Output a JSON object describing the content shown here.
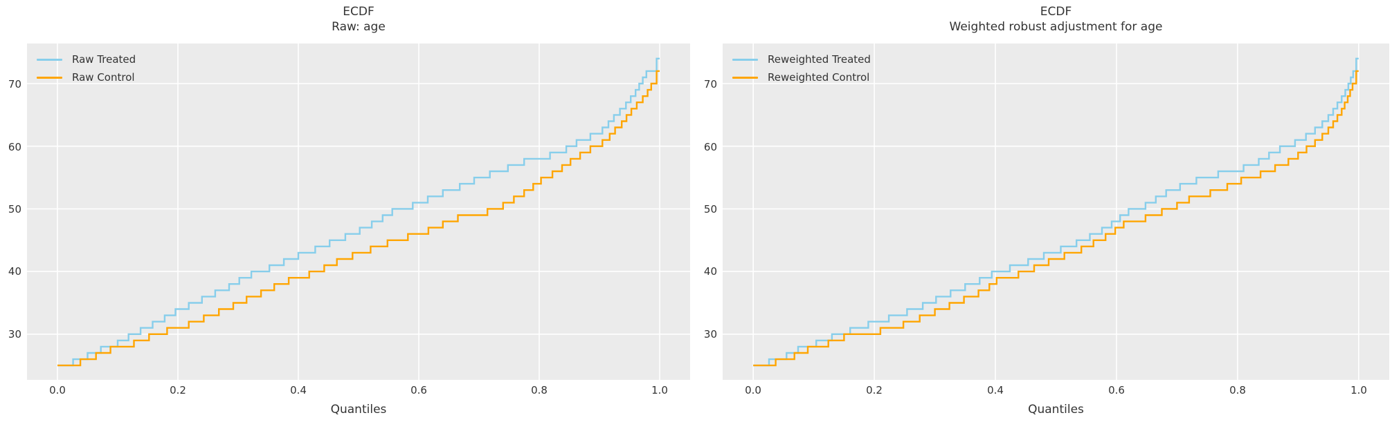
{
  "accent_colors": {
    "treated": "#87CEEB",
    "control": "#FFA500",
    "plot_background": "#ebebeb",
    "grid": "#ffffff",
    "text": "#333333"
  },
  "chart_data": [
    {
      "type": "line",
      "variant": "ecdf-step",
      "title": "ECDF\nRaw: age",
      "xlabel": "Quantiles",
      "legend_position": "upper-left",
      "grid": true,
      "x_ticks": [
        "0.0",
        "0.2",
        "0.4",
        "0.6",
        "0.8",
        "1.0"
      ],
      "x_tick_values": [
        0.0,
        0.2,
        0.4,
        0.6,
        0.8,
        1.0
      ],
      "y_ticks": [
        "30",
        "40",
        "50",
        "60",
        "70"
      ],
      "y_tick_values": [
        30,
        40,
        50,
        60,
        70
      ],
      "xlim": [
        -0.0506,
        1.0506
      ],
      "ylim": [
        22.7,
        76.4
      ],
      "series": [
        {
          "name": "Raw Treated",
          "color": "#87CEEB",
          "points": [
            [
              0,
              25
            ],
            [
              0.026,
              26
            ],
            [
              0.05,
              27
            ],
            [
              0.072,
              28
            ],
            [
              0.1,
              29
            ],
            [
              0.118,
              30
            ],
            [
              0.138,
              31
            ],
            [
              0.158,
              32
            ],
            [
              0.178,
              33
            ],
            [
              0.196,
              34
            ],
            [
              0.218,
              35
            ],
            [
              0.24,
              36
            ],
            [
              0.262,
              37
            ],
            [
              0.285,
              38
            ],
            [
              0.302,
              39
            ],
            [
              0.322,
              40
            ],
            [
              0.352,
              41
            ],
            [
              0.376,
              42
            ],
            [
              0.4,
              43
            ],
            [
              0.428,
              44
            ],
            [
              0.452,
              45
            ],
            [
              0.478,
              46
            ],
            [
              0.502,
              47
            ],
            [
              0.522,
              48
            ],
            [
              0.54,
              49
            ],
            [
              0.556,
              50
            ],
            [
              0.59,
              51
            ],
            [
              0.615,
              52
            ],
            [
              0.64,
              53
            ],
            [
              0.668,
              54
            ],
            [
              0.692,
              55
            ],
            [
              0.718,
              56
            ],
            [
              0.748,
              57
            ],
            [
              0.775,
              58
            ],
            [
              0.818,
              59
            ],
            [
              0.845,
              60
            ],
            [
              0.862,
              61
            ],
            [
              0.885,
              62
            ],
            [
              0.905,
              63
            ],
            [
              0.915,
              64
            ],
            [
              0.924,
              65
            ],
            [
              0.934,
              66
            ],
            [
              0.944,
              67
            ],
            [
              0.952,
              68
            ],
            [
              0.96,
              69
            ],
            [
              0.966,
              70
            ],
            [
              0.972,
              71
            ],
            [
              0.978,
              72
            ],
            [
              0.995,
              74
            ],
            [
              1,
              74
            ]
          ]
        },
        {
          "name": "Raw Control",
          "color": "#FFA500",
          "points": [
            [
              0,
              25
            ],
            [
              0.038,
              26
            ],
            [
              0.064,
              27
            ],
            [
              0.088,
              28
            ],
            [
              0.127,
              29
            ],
            [
              0.152,
              30
            ],
            [
              0.182,
              31
            ],
            [
              0.218,
              32
            ],
            [
              0.243,
              33
            ],
            [
              0.268,
              34
            ],
            [
              0.292,
              35
            ],
            [
              0.314,
              36
            ],
            [
              0.338,
              37
            ],
            [
              0.36,
              38
            ],
            [
              0.384,
              39
            ],
            [
              0.418,
              40
            ],
            [
              0.443,
              41
            ],
            [
              0.464,
              42
            ],
            [
              0.49,
              43
            ],
            [
              0.52,
              44
            ],
            [
              0.548,
              45
            ],
            [
              0.582,
              46
            ],
            [
              0.616,
              47
            ],
            [
              0.64,
              48
            ],
            [
              0.665,
              49
            ],
            [
              0.714,
              50
            ],
            [
              0.74,
              51
            ],
            [
              0.758,
              52
            ],
            [
              0.775,
              53
            ],
            [
              0.79,
              54
            ],
            [
              0.803,
              55
            ],
            [
              0.822,
              56
            ],
            [
              0.838,
              57
            ],
            [
              0.852,
              58
            ],
            [
              0.868,
              59
            ],
            [
              0.885,
              60
            ],
            [
              0.905,
              61
            ],
            [
              0.917,
              62
            ],
            [
              0.926,
              63
            ],
            [
              0.937,
              64
            ],
            [
              0.945,
              65
            ],
            [
              0.953,
              66
            ],
            [
              0.962,
              67
            ],
            [
              0.972,
              68
            ],
            [
              0.98,
              69
            ],
            [
              0.986,
              70
            ],
            [
              0.995,
              72
            ],
            [
              1,
              72
            ]
          ]
        }
      ]
    },
    {
      "type": "line",
      "variant": "ecdf-step",
      "title": "ECDF\nWeighted robust adjustment for age",
      "xlabel": "Quantiles",
      "legend_position": "upper-left",
      "grid": true,
      "x_ticks": [
        "0.0",
        "0.2",
        "0.4",
        "0.6",
        "0.8",
        "1.0"
      ],
      "x_tick_values": [
        0.0,
        0.2,
        0.4,
        0.6,
        0.8,
        1.0
      ],
      "y_ticks": [
        "30",
        "40",
        "50",
        "60",
        "70"
      ],
      "y_tick_values": [
        30,
        40,
        50,
        60,
        70
      ],
      "xlim": [
        -0.0506,
        1.0506
      ],
      "ylim": [
        22.7,
        76.4
      ],
      "series": [
        {
          "name": "Reweighted Treated",
          "color": "#87CEEB",
          "points": [
            [
              0,
              25
            ],
            [
              0.026,
              26
            ],
            [
              0.055,
              27
            ],
            [
              0.074,
              28
            ],
            [
              0.104,
              29
            ],
            [
              0.13,
              30
            ],
            [
              0.16,
              31
            ],
            [
              0.19,
              32
            ],
            [
              0.224,
              33
            ],
            [
              0.254,
              34
            ],
            [
              0.28,
              35
            ],
            [
              0.302,
              36
            ],
            [
              0.326,
              37
            ],
            [
              0.35,
              38
            ],
            [
              0.374,
              39
            ],
            [
              0.394,
              40
            ],
            [
              0.424,
              41
            ],
            [
              0.454,
              42
            ],
            [
              0.48,
              43
            ],
            [
              0.508,
              44
            ],
            [
              0.534,
              45
            ],
            [
              0.556,
              46
            ],
            [
              0.576,
              47
            ],
            [
              0.592,
              48
            ],
            [
              0.606,
              49
            ],
            [
              0.62,
              50
            ],
            [
              0.648,
              51
            ],
            [
              0.665,
              52
            ],
            [
              0.682,
              53
            ],
            [
              0.705,
              54
            ],
            [
              0.732,
              55
            ],
            [
              0.768,
              56
            ],
            [
              0.81,
              57
            ],
            [
              0.835,
              58
            ],
            [
              0.852,
              59
            ],
            [
              0.87,
              60
            ],
            [
              0.895,
              61
            ],
            [
              0.913,
              62
            ],
            [
              0.928,
              63
            ],
            [
              0.94,
              64
            ],
            [
              0.95,
              65
            ],
            [
              0.958,
              66
            ],
            [
              0.965,
              67
            ],
            [
              0.972,
              68
            ],
            [
              0.978,
              69
            ],
            [
              0.983,
              70
            ],
            [
              0.987,
              71
            ],
            [
              0.991,
              72
            ],
            [
              0.996,
              74
            ],
            [
              1,
              74
            ]
          ]
        },
        {
          "name": "Reweighted Control",
          "color": "#FFA500",
          "points": [
            [
              0,
              25
            ],
            [
              0.037,
              26
            ],
            [
              0.068,
              27
            ],
            [
              0.09,
              28
            ],
            [
              0.124,
              29
            ],
            [
              0.15,
              30
            ],
            [
              0.21,
              31
            ],
            [
              0.248,
              32
            ],
            [
              0.275,
              33
            ],
            [
              0.3,
              34
            ],
            [
              0.324,
              35
            ],
            [
              0.348,
              36
            ],
            [
              0.372,
              37
            ],
            [
              0.39,
              38
            ],
            [
              0.402,
              39
            ],
            [
              0.438,
              40
            ],
            [
              0.464,
              41
            ],
            [
              0.488,
              42
            ],
            [
              0.514,
              43
            ],
            [
              0.542,
              44
            ],
            [
              0.562,
              45
            ],
            [
              0.582,
              46
            ],
            [
              0.598,
              47
            ],
            [
              0.612,
              48
            ],
            [
              0.648,
              49
            ],
            [
              0.675,
              50
            ],
            [
              0.7,
              51
            ],
            [
              0.72,
              52
            ],
            [
              0.755,
              53
            ],
            [
              0.783,
              54
            ],
            [
              0.806,
              55
            ],
            [
              0.838,
              56
            ],
            [
              0.862,
              57
            ],
            [
              0.884,
              58
            ],
            [
              0.9,
              59
            ],
            [
              0.914,
              60
            ],
            [
              0.928,
              61
            ],
            [
              0.94,
              62
            ],
            [
              0.95,
              63
            ],
            [
              0.958,
              64
            ],
            [
              0.965,
              65
            ],
            [
              0.972,
              66
            ],
            [
              0.977,
              67
            ],
            [
              0.982,
              68
            ],
            [
              0.986,
              69
            ],
            [
              0.99,
              70
            ],
            [
              0.996,
              72
            ],
            [
              1,
              72
            ]
          ]
        }
      ]
    }
  ]
}
